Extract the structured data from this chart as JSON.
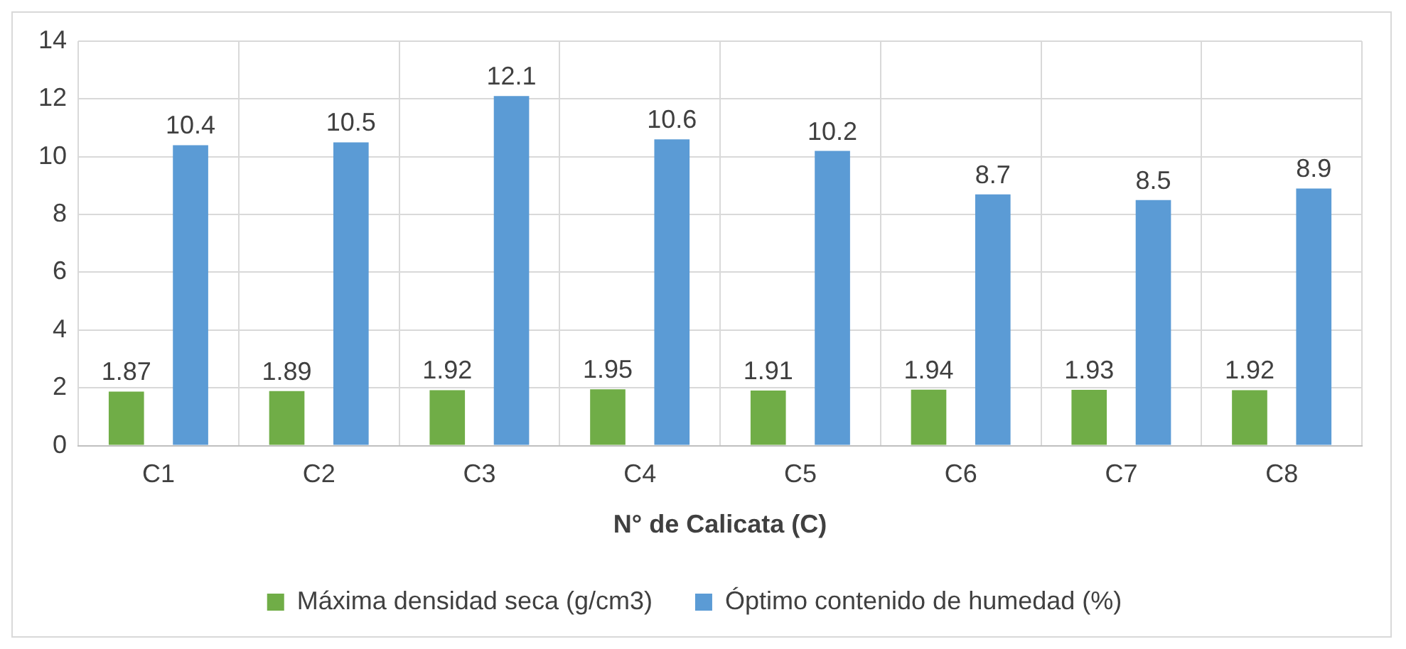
{
  "chart_data": {
    "type": "bar",
    "xlabel": "N° de Calicata (C)",
    "categories": [
      "C1",
      "C2",
      "C3",
      "C4",
      "C5",
      "C6",
      "C7",
      "C8"
    ],
    "series": [
      {
        "name": "Máxima densidad seca (g/cm3)",
        "color": "#70ad47",
        "values": [
          1.87,
          1.89,
          1.92,
          1.95,
          1.91,
          1.94,
          1.93,
          1.92
        ]
      },
      {
        "name": "Óptimo contenido de humedad (%)",
        "color": "#5b9bd5",
        "values": [
          10.4,
          10.5,
          12.1,
          10.6,
          10.2,
          8.7,
          8.5,
          8.9
        ]
      }
    ],
    "ylim": [
      0,
      14
    ],
    "yticks": [
      0,
      2,
      4,
      6,
      8,
      10,
      12,
      14
    ],
    "grid": true,
    "legend": "bottom",
    "data_labels": true
  }
}
